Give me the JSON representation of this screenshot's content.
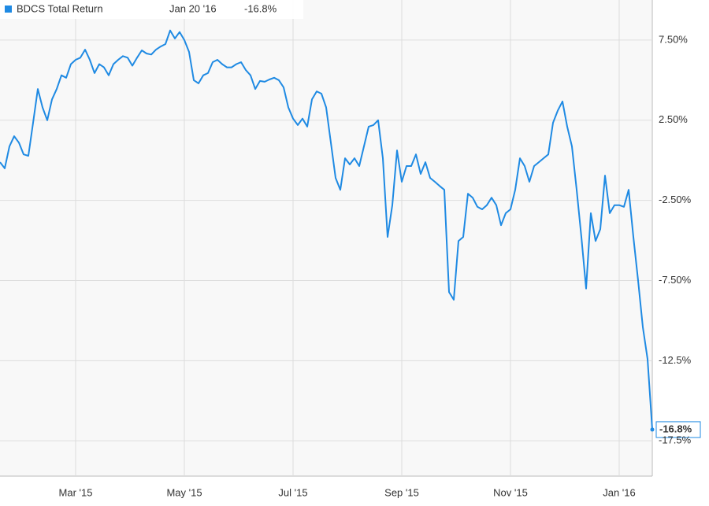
{
  "chart_data": {
    "type": "line",
    "current_label": {
      "date": "Jan 20 '16",
      "label": "-16.8%"
    },
    "categories": [
      null,
      null,
      null,
      null,
      null,
      null,
      null,
      null,
      null,
      null,
      null,
      null,
      null,
      null,
      null,
      null,
      "Mar '15",
      null,
      null,
      null,
      null,
      null,
      null,
      null,
      null,
      null,
      null,
      null,
      null,
      null,
      null,
      null,
      null,
      null,
      null,
      null,
      null,
      null,
      null,
      "May '15",
      null,
      null,
      null,
      null,
      null,
      null,
      null,
      null,
      null,
      null,
      null,
      null,
      null,
      null,
      null,
      null,
      null,
      null,
      null,
      null,
      null,
      null,
      "Jul '15",
      null,
      null,
      null,
      null,
      null,
      null,
      null,
      null,
      null,
      null,
      null,
      null,
      null,
      null,
      null,
      null,
      null,
      null,
      null,
      null,
      null,
      null,
      "Sep '15",
      null,
      null,
      null,
      null,
      null,
      null,
      null,
      null,
      null,
      null,
      null,
      null,
      null,
      null,
      null,
      null,
      null,
      null,
      null,
      null,
      null,
      null,
      "Nov '15",
      null,
      null,
      null,
      null,
      null,
      null,
      null,
      null,
      null,
      null,
      null,
      null,
      null,
      null,
      null,
      null,
      null,
      null,
      null,
      null,
      null,
      null,
      "Jan '16",
      null,
      null,
      null,
      null,
      null,
      null,
      null
    ],
    "series": [
      {
        "name": "BDCS Total Return",
        "color": "#1f8ae3",
        "values": [
          -0.12,
          -0.5,
          0.87,
          1.5,
          1.1,
          0.37,
          0.28,
          2.34,
          4.45,
          3.3,
          2.5,
          3.8,
          4.45,
          5.3,
          5.15,
          6.0,
          6.27,
          6.4,
          6.9,
          6.27,
          5.44,
          6.0,
          5.8,
          5.3,
          6.0,
          6.27,
          6.5,
          6.4,
          5.9,
          6.4,
          6.86,
          6.66,
          6.6,
          6.9,
          7.1,
          7.25,
          8.1,
          7.6,
          8.0,
          7.5,
          6.76,
          5.0,
          4.8,
          5.3,
          5.44,
          6.12,
          6.27,
          6.0,
          5.8,
          5.8,
          6.0,
          6.12,
          5.63,
          5.3,
          4.45,
          4.95,
          4.9,
          5.04,
          5.15,
          5.0,
          4.55,
          3.3,
          2.6,
          2.2,
          2.6,
          2.1,
          3.8,
          4.3,
          4.16,
          3.3,
          1.1,
          -1.1,
          -1.84,
          0.13,
          -0.26,
          0.13,
          -0.36,
          0.87,
          2.1,
          2.2,
          2.5,
          0.13,
          -4.78,
          -2.8,
          0.62,
          -1.34,
          -0.36,
          -0.36,
          0.37,
          -0.85,
          -0.12,
          -1.1,
          -1.34,
          -1.6,
          -1.84,
          -8.22,
          -8.7,
          -5.03,
          -4.78,
          -2.08,
          -2.33,
          -2.9,
          -3.06,
          -2.8,
          -2.33,
          -2.8,
          -4.05,
          -3.3,
          -3.06,
          -1.84,
          0.13,
          -0.36,
          -1.34,
          -0.36,
          -0.12,
          0.13,
          0.37,
          2.34,
          3.1,
          3.67,
          2.1,
          0.87,
          -1.84,
          -4.78,
          -8.0,
          -3.3,
          -5.03,
          -4.3,
          -0.95,
          -3.3,
          -2.8,
          -2.8,
          -2.9,
          -1.84,
          -4.78,
          -7.5,
          -10.4,
          -12.4,
          -16.8
        ]
      }
    ],
    "ylim": [
      -19.7,
      10
    ],
    "yticks": [
      {
        "value": 7.5,
        "label": "7.50%"
      },
      {
        "value": 2.5,
        "label": "2.50%"
      },
      {
        "value": -2.5,
        "label": "-2.50%"
      },
      {
        "value": -7.5,
        "label": "-7.50%"
      },
      {
        "value": -12.5,
        "label": "-12.5%"
      },
      {
        "value": -17.5,
        "label": "-17.5%"
      }
    ],
    "grid": true
  }
}
